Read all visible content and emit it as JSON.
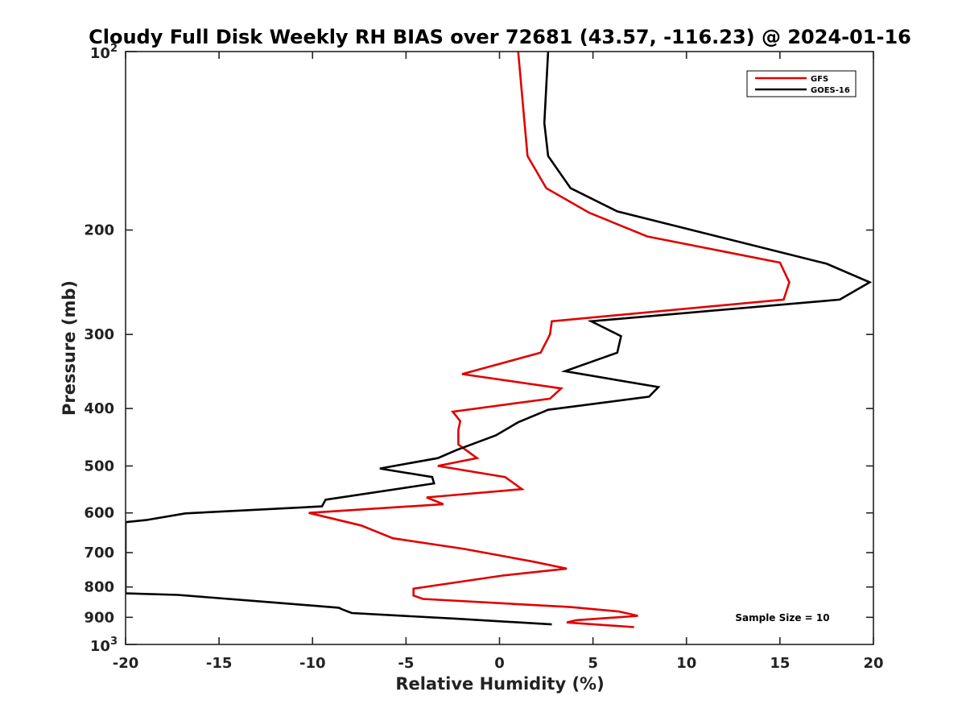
{
  "chart_data": {
    "type": "line",
    "title": "Cloudy Full Disk Weekly RH BIAS over 72681 (43.57, -116.23) @ 2024-01-16",
    "xlabel": "Relative Humidity (%)",
    "ylabel": "Pressure (mb)",
    "xlim": [
      -20,
      20
    ],
    "ylim": [
      100,
      1000
    ],
    "y_scale": "log",
    "y_reversed": true,
    "grid": false,
    "legend_position": "top-right",
    "x_ticks": [
      -20,
      -15,
      -10,
      -5,
      0,
      5,
      10,
      15,
      20
    ],
    "x_tick_labels": [
      "-20",
      "-15",
      "-10",
      "-5",
      "0",
      "5",
      "10",
      "15",
      "20"
    ],
    "y_major_ticks": [
      100,
      1000
    ],
    "y_minor_ticks": [
      200,
      300,
      400,
      500,
      600,
      700,
      800,
      900
    ],
    "y_tick_labels": [
      "200",
      "300",
      "400",
      "500",
      "600",
      "700",
      "800",
      "900"
    ],
    "y_major_tick_labels": [
      {
        "base": "10",
        "exp": "2"
      },
      {
        "base": "10",
        "exp": "3"
      }
    ],
    "annotation": "Sample Size = 10",
    "series": [
      {
        "name": "GFS",
        "color": "#e00000",
        "points": [
          [
            1.0,
            100
          ],
          [
            1.5,
            150
          ],
          [
            2.5,
            170
          ],
          [
            4.8,
            187
          ],
          [
            7.9,
            205
          ],
          [
            15.0,
            227
          ],
          [
            15.5,
            245
          ],
          [
            15.2,
            262
          ],
          [
            2.8,
            285
          ],
          [
            2.7,
            300
          ],
          [
            2.2,
            322
          ],
          [
            -2.0,
            350
          ],
          [
            3.3,
            370
          ],
          [
            2.7,
            385
          ],
          [
            -2.5,
            405
          ],
          [
            -2.1,
            420
          ],
          [
            -2.2,
            435
          ],
          [
            -2.2,
            460
          ],
          [
            -1.2,
            485
          ],
          [
            -3.3,
            500
          ],
          [
            0.3,
            522
          ],
          [
            1.2,
            547
          ],
          [
            -3.9,
            565
          ],
          [
            -3.0,
            580
          ],
          [
            -10.2,
            600
          ],
          [
            -7.4,
            630
          ],
          [
            -5.7,
            662
          ],
          [
            -1.9,
            690
          ],
          [
            1.8,
            725
          ],
          [
            3.6,
            745
          ],
          [
            0.2,
            765
          ],
          [
            -4.6,
            805
          ],
          [
            -4.6,
            827
          ],
          [
            -4.1,
            838
          ],
          [
            3.8,
            865
          ],
          [
            6.4,
            880
          ],
          [
            7.4,
            895
          ],
          [
            4.1,
            910
          ],
          [
            3.6,
            918
          ],
          [
            7.2,
            935
          ]
        ]
      },
      {
        "name": "GOES-16",
        "color": "#000000",
        "points": [
          [
            2.6,
            100
          ],
          [
            2.4,
            132
          ],
          [
            2.6,
            150
          ],
          [
            3.8,
            170
          ],
          [
            6.3,
            186
          ],
          [
            10.3,
            200
          ],
          [
            17.5,
            228
          ],
          [
            19.8,
            245
          ],
          [
            18.2,
            262
          ],
          [
            4.9,
            285
          ],
          [
            6.5,
            302
          ],
          [
            6.3,
            322
          ],
          [
            3.5,
            346
          ],
          [
            8.5,
            368
          ],
          [
            8.0,
            382
          ],
          [
            2.6,
            402
          ],
          [
            1.0,
            422
          ],
          [
            -0.2,
            444
          ],
          [
            -2.3,
            470
          ],
          [
            -3.3,
            485
          ],
          [
            -6.4,
            505
          ],
          [
            -3.6,
            522
          ],
          [
            -3.5,
            535
          ],
          [
            -9.3,
            570
          ],
          [
            -9.5,
            585
          ],
          [
            -16.8,
            601
          ],
          [
            -18.9,
            617
          ],
          [
            -20.0,
            622
          ],
          [
            -20.0,
            820
          ],
          [
            -17.2,
            825
          ],
          [
            -12.0,
            850
          ],
          [
            -8.6,
            867
          ],
          [
            -8.4,
            873
          ],
          [
            -7.9,
            885
          ],
          [
            -2.3,
            905
          ],
          [
            2.8,
            925
          ]
        ]
      }
    ]
  }
}
